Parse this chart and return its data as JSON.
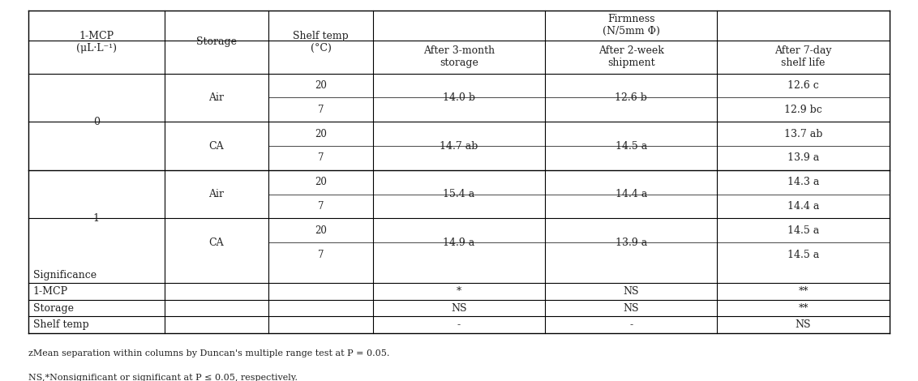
{
  "footnote1": "zMean separation within columns by Duncan's multiple range test at P = 0.05.",
  "footnote2": "NS,*Nonsignificant or significant at P ≤ 0.05, respectively.",
  "data_rows": [
    {
      "mcp": "0",
      "storage": "Air",
      "temps": [
        "20",
        "7"
      ],
      "firmness3m": "14.0 b",
      "firmness2w": "12.6 b",
      "firmness7d": [
        "12.6 c",
        "12.9 bc"
      ]
    },
    {
      "mcp": "0",
      "storage": "CA",
      "temps": [
        "20",
        "7"
      ],
      "firmness3m": "14.7 ab",
      "firmness2w": "14.5 a",
      "firmness7d": [
        "13.7 ab",
        "13.9 a"
      ]
    },
    {
      "mcp": "1",
      "storage": "Air",
      "temps": [
        "20",
        "7"
      ],
      "firmness3m": "15.4 a",
      "firmness2w": "14.4 a",
      "firmness7d": [
        "14.3 a",
        "14.4 a"
      ]
    },
    {
      "mcp": "1",
      "storage": "CA",
      "temps": [
        "20",
        "7"
      ],
      "firmness3m": "14.9 a",
      "firmness2w": "13.9 a",
      "firmness7d": [
        "14.5 a",
        "14.5 a"
      ]
    }
  ],
  "significance_rows": [
    {
      "label": "1-MCP",
      "vals": [
        "*",
        "NS",
        "**"
      ]
    },
    {
      "label": "Storage",
      "vals": [
        "NS",
        "NS",
        "**"
      ]
    },
    {
      "label": "Shelf temp",
      "vals": [
        "-",
        "-",
        "NS"
      ]
    }
  ],
  "bg_color": "#ffffff",
  "line_color": "#000000",
  "font_size": 9,
  "font_color": "#222222"
}
